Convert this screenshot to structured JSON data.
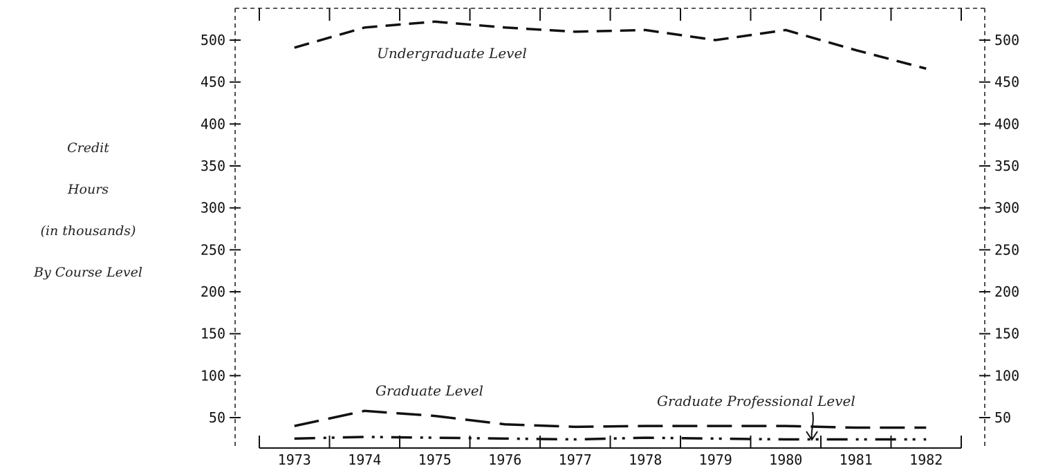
{
  "chart_data": {
    "type": "line",
    "title": "",
    "xlabel": "",
    "ylabel_lines": [
      "Credit",
      "Hours",
      "(in thousands)",
      "By Course Level"
    ],
    "categories": [
      "1973",
      "1974",
      "1975",
      "1976",
      "1977",
      "1978",
      "1979",
      "1980",
      "1981",
      "1982"
    ],
    "ylim": [
      0,
      525
    ],
    "yticks": [
      "50",
      "100",
      "150",
      "200",
      "250",
      "300",
      "350",
      "400",
      "450",
      "500"
    ],
    "grid": false,
    "legend": "none",
    "series": [
      {
        "name": "Undergraduate Level",
        "style": "dashed",
        "values": [
          491,
          515,
          522,
          515,
          510,
          512,
          500,
          512,
          488,
          466
        ]
      },
      {
        "name": "Graduate Level",
        "style": "long-dash",
        "values": [
          40,
          58,
          52,
          42,
          39,
          40,
          40,
          40,
          38,
          38
        ]
      },
      {
        "name": "Graduate Professional Level",
        "style": "dash-dot",
        "values": [
          25,
          27,
          26,
          25,
          24,
          26,
          25,
          24,
          24,
          24
        ]
      }
    ],
    "annotations": [
      {
        "text": "Undergraduate Level"
      },
      {
        "text": "Graduate Level"
      },
      {
        "text": "Graduate Professional Level"
      }
    ]
  }
}
